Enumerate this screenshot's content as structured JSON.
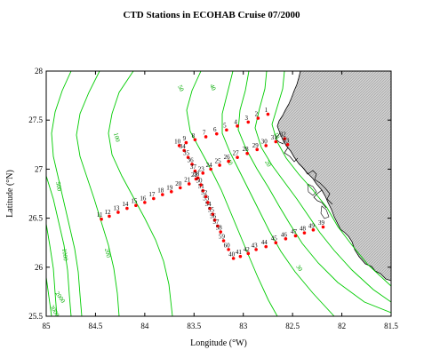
{
  "title": "CTD Stations in ECOHAB Cruise 07/2000",
  "axes": {
    "xlabel": "Longitude (°W)",
    "ylabel": "Latitude (°N)",
    "xlim": [
      85,
      81.5
    ],
    "ylim": [
      25.5,
      28
    ],
    "xticks": [
      {
        "v": 85,
        "label": "85"
      },
      {
        "v": 84.5,
        "label": "84.5"
      },
      {
        "v": 84,
        "label": "84"
      },
      {
        "v": 83.5,
        "label": "83.5"
      },
      {
        "v": 83,
        "label": "83"
      },
      {
        "v": 82.5,
        "label": "82.5"
      },
      {
        "v": 82,
        "label": "82"
      },
      {
        "v": 81.5,
        "label": "81.5"
      }
    ],
    "yticks": [
      {
        "v": 25.5,
        "label": "25.5"
      },
      {
        "v": 26,
        "label": "26"
      },
      {
        "v": 26.5,
        "label": "26.5"
      },
      {
        "v": 27,
        "label": "27"
      },
      {
        "v": 27.5,
        "label": "27.5"
      },
      {
        "v": 28,
        "label": "28"
      }
    ]
  },
  "colors": {
    "station": "#ff0000",
    "isobath": "#00cc00",
    "land_fill": "#c8c8c8",
    "coastline": "#000000"
  },
  "isobath_labels": [
    "10",
    "20",
    "30",
    "40",
    "50",
    "100",
    "200",
    "500",
    "1000",
    "2000",
    "3000"
  ],
  "chart_data": {
    "type": "scatter",
    "title": "CTD Stations in ECOHAB Cruise 07/2000",
    "xlabel": "Longitude (°W)",
    "ylabel": "Latitude (°N)",
    "xlim": [
      85,
      81.5
    ],
    "ylim": [
      25.5,
      28
    ],
    "series": [
      {
        "points": [
          {
            "label": "1",
            "lon": 82.75,
            "lat": 27.56
          },
          {
            "label": "2",
            "lon": 82.85,
            "lat": 27.52
          },
          {
            "label": "3",
            "lon": 82.95,
            "lat": 27.48
          },
          {
            "label": "4",
            "lon": 83.06,
            "lat": 27.44
          },
          {
            "label": "5",
            "lon": 83.17,
            "lat": 27.4
          },
          {
            "label": "6",
            "lon": 83.27,
            "lat": 27.36
          },
          {
            "label": "7",
            "lon": 83.38,
            "lat": 27.33
          },
          {
            "label": "8",
            "lon": 83.49,
            "lat": 27.3
          },
          {
            "label": "9",
            "lon": 83.58,
            "lat": 27.27
          },
          {
            "label": "10",
            "lon": 83.65,
            "lat": 27.24
          },
          {
            "label": "11",
            "lon": 84.44,
            "lat": 26.49
          },
          {
            "label": "12",
            "lon": 84.36,
            "lat": 26.52
          },
          {
            "label": "13",
            "lon": 84.27,
            "lat": 26.56
          },
          {
            "label": "14",
            "lon": 84.18,
            "lat": 26.6
          },
          {
            "label": "15",
            "lon": 84.09,
            "lat": 26.63
          },
          {
            "label": "16",
            "lon": 84.0,
            "lat": 26.66
          },
          {
            "label": "17",
            "lon": 83.91,
            "lat": 26.7
          },
          {
            "label": "18",
            "lon": 83.82,
            "lat": 26.74
          },
          {
            "label": "19",
            "lon": 83.73,
            "lat": 26.77
          },
          {
            "label": "20",
            "lon": 83.64,
            "lat": 26.81
          },
          {
            "label": "21",
            "lon": 83.55,
            "lat": 26.85
          },
          {
            "label": "22",
            "lon": 83.48,
            "lat": 26.9
          },
          {
            "label": "23",
            "lon": 83.41,
            "lat": 26.96
          },
          {
            "label": "24",
            "lon": 83.33,
            "lat": 27.0
          },
          {
            "label": "25",
            "lon": 83.24,
            "lat": 27.04
          },
          {
            "label": "26",
            "lon": 83.15,
            "lat": 27.08
          },
          {
            "label": "27",
            "lon": 83.06,
            "lat": 27.12
          },
          {
            "label": "28",
            "lon": 82.96,
            "lat": 27.16
          },
          {
            "label": "29",
            "lon": 82.86,
            "lat": 27.2
          },
          {
            "label": "30",
            "lon": 82.77,
            "lat": 27.24
          },
          {
            "label": "31",
            "lon": 82.67,
            "lat": 27.28
          },
          {
            "label": "32",
            "lon": 82.58,
            "lat": 27.31
          },
          {
            "label": "33",
            "lon": 82.55,
            "lat": 27.25
          },
          {
            "label": "34",
            "lon": 83.6,
            "lat": 27.19
          },
          {
            "label": "35",
            "lon": 83.56,
            "lat": 27.12
          },
          {
            "label": "36",
            "lon": 83.52,
            "lat": 27.05
          },
          {
            "label": "37",
            "lon": 83.49,
            "lat": 26.98
          },
          {
            "label": "38",
            "lon": 83.46,
            "lat": 26.91
          },
          {
            "label": "39",
            "lon": 82.19,
            "lat": 26.41
          },
          {
            "label": "40",
            "lon": 83.1,
            "lat": 26.09
          },
          {
            "label": "41",
            "lon": 83.03,
            "lat": 26.11
          },
          {
            "label": "42",
            "lon": 82.95,
            "lat": 26.14
          },
          {
            "label": "43",
            "lon": 82.87,
            "lat": 26.18
          },
          {
            "label": "44",
            "lon": 82.77,
            "lat": 26.21
          },
          {
            "label": "45",
            "lon": 82.67,
            "lat": 26.25
          },
          {
            "label": "46",
            "lon": 82.57,
            "lat": 26.29
          },
          {
            "label": "47",
            "lon": 82.47,
            "lat": 26.32
          },
          {
            "label": "48",
            "lon": 82.38,
            "lat": 26.35
          },
          {
            "label": "49",
            "lon": 82.29,
            "lat": 26.38
          },
          {
            "label": "50",
            "lon": 83.43,
            "lat": 26.84
          },
          {
            "label": "51",
            "lon": 83.41,
            "lat": 26.78
          },
          {
            "label": "52",
            "lon": 83.38,
            "lat": 26.72
          },
          {
            "label": "53",
            "lon": 83.36,
            "lat": 26.66
          },
          {
            "label": "54",
            "lon": 83.34,
            "lat": 26.6
          },
          {
            "label": "55",
            "lon": 83.31,
            "lat": 26.54
          },
          {
            "label": "56",
            "lon": 83.29,
            "lat": 26.48
          },
          {
            "label": "57",
            "lon": 83.26,
            "lat": 26.42
          },
          {
            "label": "58",
            "lon": 83.23,
            "lat": 26.36
          },
          {
            "label": "59",
            "lon": 83.2,
            "lat": 26.27
          },
          {
            "label": "60",
            "lon": 83.15,
            "lat": 26.18
          }
        ]
      }
    ]
  }
}
